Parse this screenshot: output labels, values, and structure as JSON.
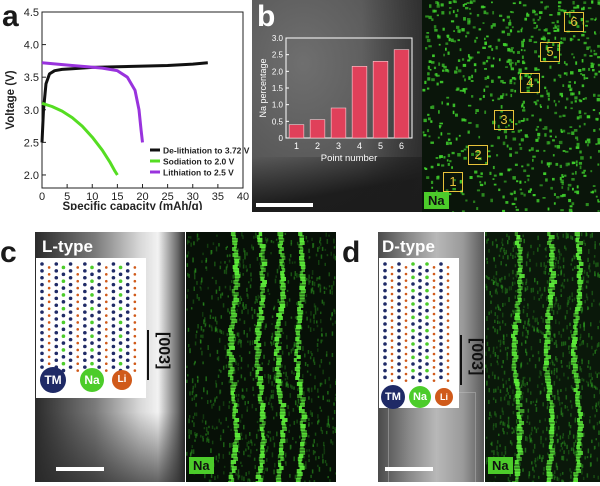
{
  "panels": {
    "a": {
      "label": "a"
    },
    "b": {
      "label": "b",
      "tag": "Na",
      "points": [
        "1",
        "2",
        "3",
        "4",
        "5",
        "6"
      ]
    },
    "c": {
      "label": "c",
      "type": "L-type",
      "tag": "Na",
      "miller": "[003]"
    },
    "d": {
      "label": "d",
      "type": "D-type",
      "tag": "Na",
      "miller": "[003]"
    }
  },
  "atoms_legend": {
    "tm": "TM",
    "na": "Na",
    "li": "Li"
  },
  "colors": {
    "black_curve": "#111111",
    "green_curve": "#55dd22",
    "purple_curve": "#9933dd",
    "bar_fill": "#e0405a",
    "na_green": "#4ccc2a",
    "tm_navy": "#1f2a66",
    "li_orange": "#d05a1a"
  },
  "chart_data": [
    {
      "type": "line",
      "xlabel": "Specific capacity (mAh/g)",
      "ylabel": "Voltage (V)",
      "xlim": [
        0,
        40
      ],
      "ylim": [
        1.8,
        4.5
      ],
      "xticks": [
        "0",
        "5",
        "10",
        "15",
        "20",
        "25",
        "30",
        "35",
        "40"
      ],
      "yticks": [
        "2.0",
        "2.5",
        "3.0",
        "3.5",
        "4.0",
        "4.5"
      ],
      "legend_position": "bottom-right",
      "series": [
        {
          "name": "De-lithiation to 3.72 V",
          "color": "#111111",
          "x": [
            0,
            0.3,
            0.8,
            1.5,
            2.5,
            4,
            6,
            10,
            15,
            20,
            25,
            30,
            33
          ],
          "y": [
            2.5,
            3.0,
            3.4,
            3.55,
            3.6,
            3.62,
            3.63,
            3.65,
            3.66,
            3.67,
            3.68,
            3.7,
            3.72
          ]
        },
        {
          "name": "Sodiation to 2.0 V",
          "color": "#55dd22",
          "x": [
            0,
            2,
            4,
            6,
            8,
            10,
            12,
            13.5,
            14.5,
            15
          ],
          "y": [
            3.1,
            3.05,
            2.98,
            2.88,
            2.75,
            2.58,
            2.38,
            2.2,
            2.06,
            2.0
          ]
        },
        {
          "name": "Lithiation to 2.5 V",
          "color": "#9933dd",
          "x": [
            0,
            3,
            6,
            9,
            12,
            15,
            17,
            18.5,
            19.3,
            19.7,
            20
          ],
          "y": [
            3.72,
            3.7,
            3.68,
            3.66,
            3.64,
            3.6,
            3.5,
            3.3,
            3.0,
            2.7,
            2.5
          ]
        }
      ]
    },
    {
      "type": "bar",
      "xlabel": "Point number",
      "ylabel": "Na percentage",
      "categories": [
        "1",
        "2",
        "3",
        "4",
        "5",
        "6"
      ],
      "values": [
        0.4,
        0.55,
        0.9,
        2.15,
        2.3,
        2.65
      ],
      "ylim": [
        0,
        3.0
      ],
      "yticks": [
        "0",
        "0.5",
        "1.0",
        "1.5",
        "2.0",
        "2.5",
        "3.0"
      ]
    }
  ]
}
